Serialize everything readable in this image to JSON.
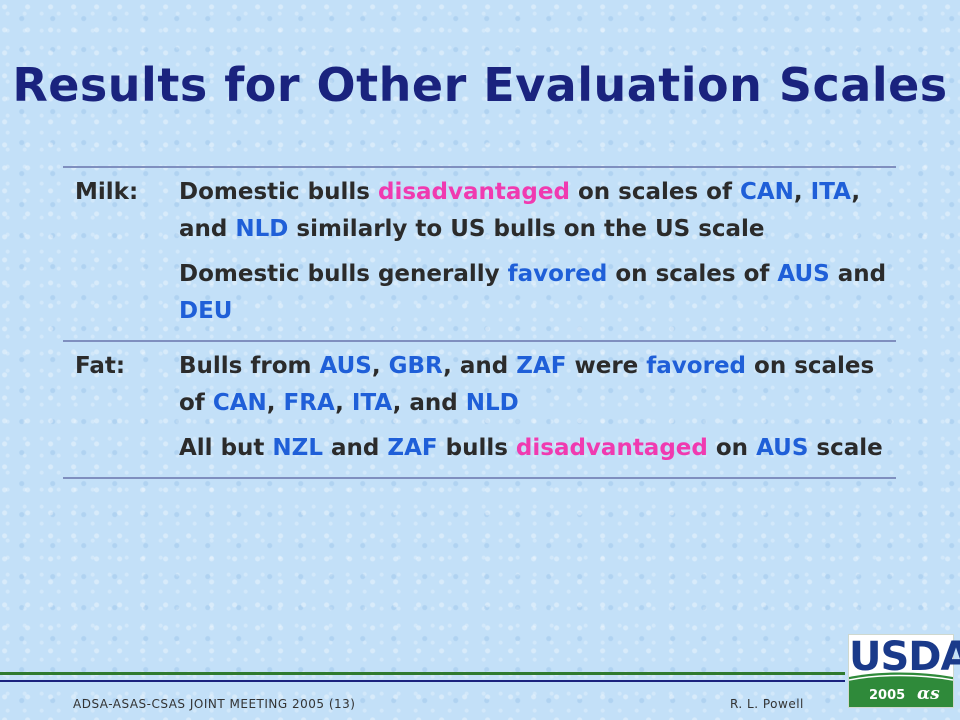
{
  "slide": {
    "title": "Results for Other Evaluation Scales"
  },
  "rows": [
    {
      "label": "Milk:",
      "items": [
        [
          {
            "t": "Domestic bulls ",
            "c": ""
          },
          {
            "t": "disadvantaged",
            "c": "pink"
          },
          {
            "t": " on scales of ",
            "c": ""
          },
          {
            "t": "CAN",
            "c": "blue"
          },
          {
            "t": ", ",
            "c": ""
          },
          {
            "t": "ITA",
            "c": "blue"
          },
          {
            "t": ", and ",
            "c": ""
          },
          {
            "t": "NLD",
            "c": "blue"
          },
          {
            "t": " similarly to US bulls on the US scale",
            "c": ""
          }
        ],
        [
          {
            "t": "Domestic bulls generally ",
            "c": ""
          },
          {
            "t": "favored",
            "c": "blue"
          },
          {
            "t": " on scales of ",
            "c": ""
          },
          {
            "t": "AUS",
            "c": "blue"
          },
          {
            "t": " and ",
            "c": ""
          },
          {
            "t": "DEU",
            "c": "blue"
          }
        ]
      ]
    },
    {
      "label": "Fat:",
      "items": [
        [
          {
            "t": "Bulls from ",
            "c": ""
          },
          {
            "t": "AUS",
            "c": "blue"
          },
          {
            "t": ", ",
            "c": ""
          },
          {
            "t": "GBR",
            "c": "blue"
          },
          {
            "t": ", and ",
            "c": ""
          },
          {
            "t": "ZAF",
            "c": "blue"
          },
          {
            "t": " were ",
            "c": ""
          },
          {
            "t": "favored",
            "c": "blue"
          },
          {
            "t": " on scales of ",
            "c": ""
          },
          {
            "t": "CAN",
            "c": "blue"
          },
          {
            "t": ", ",
            "c": ""
          },
          {
            "t": "FRA",
            "c": "blue"
          },
          {
            "t": ", ",
            "c": ""
          },
          {
            "t": "ITA",
            "c": "blue"
          },
          {
            "t": ", and ",
            "c": ""
          },
          {
            "t": "NLD",
            "c": "blue"
          }
        ],
        [
          {
            "t": "All but ",
            "c": ""
          },
          {
            "t": "NZL",
            "c": "blue"
          },
          {
            "t": " and ",
            "c": ""
          },
          {
            "t": "ZAF",
            "c": "blue"
          },
          {
            "t": " bulls ",
            "c": ""
          },
          {
            "t": "disadvantaged",
            "c": "pink"
          },
          {
            "t": " on ",
            "c": ""
          },
          {
            "t": "AUS",
            "c": "blue"
          },
          {
            "t": " scale",
            "c": ""
          }
        ]
      ]
    }
  ],
  "footer": {
    "left": "ADSA-ASAS-CSAS JOINT MEETING 2005 (13)",
    "right": "R. L. Powell"
  },
  "logo": {
    "name": "USDA",
    "year": "2005",
    "mark": "ɑs"
  },
  "colors": {
    "title": "#1a237e",
    "highlight_blue": "#1f5fd8",
    "highlight_pink": "#f03ab0",
    "rule": "#7f8fbf",
    "footer_green": "#2f7a2f"
  }
}
